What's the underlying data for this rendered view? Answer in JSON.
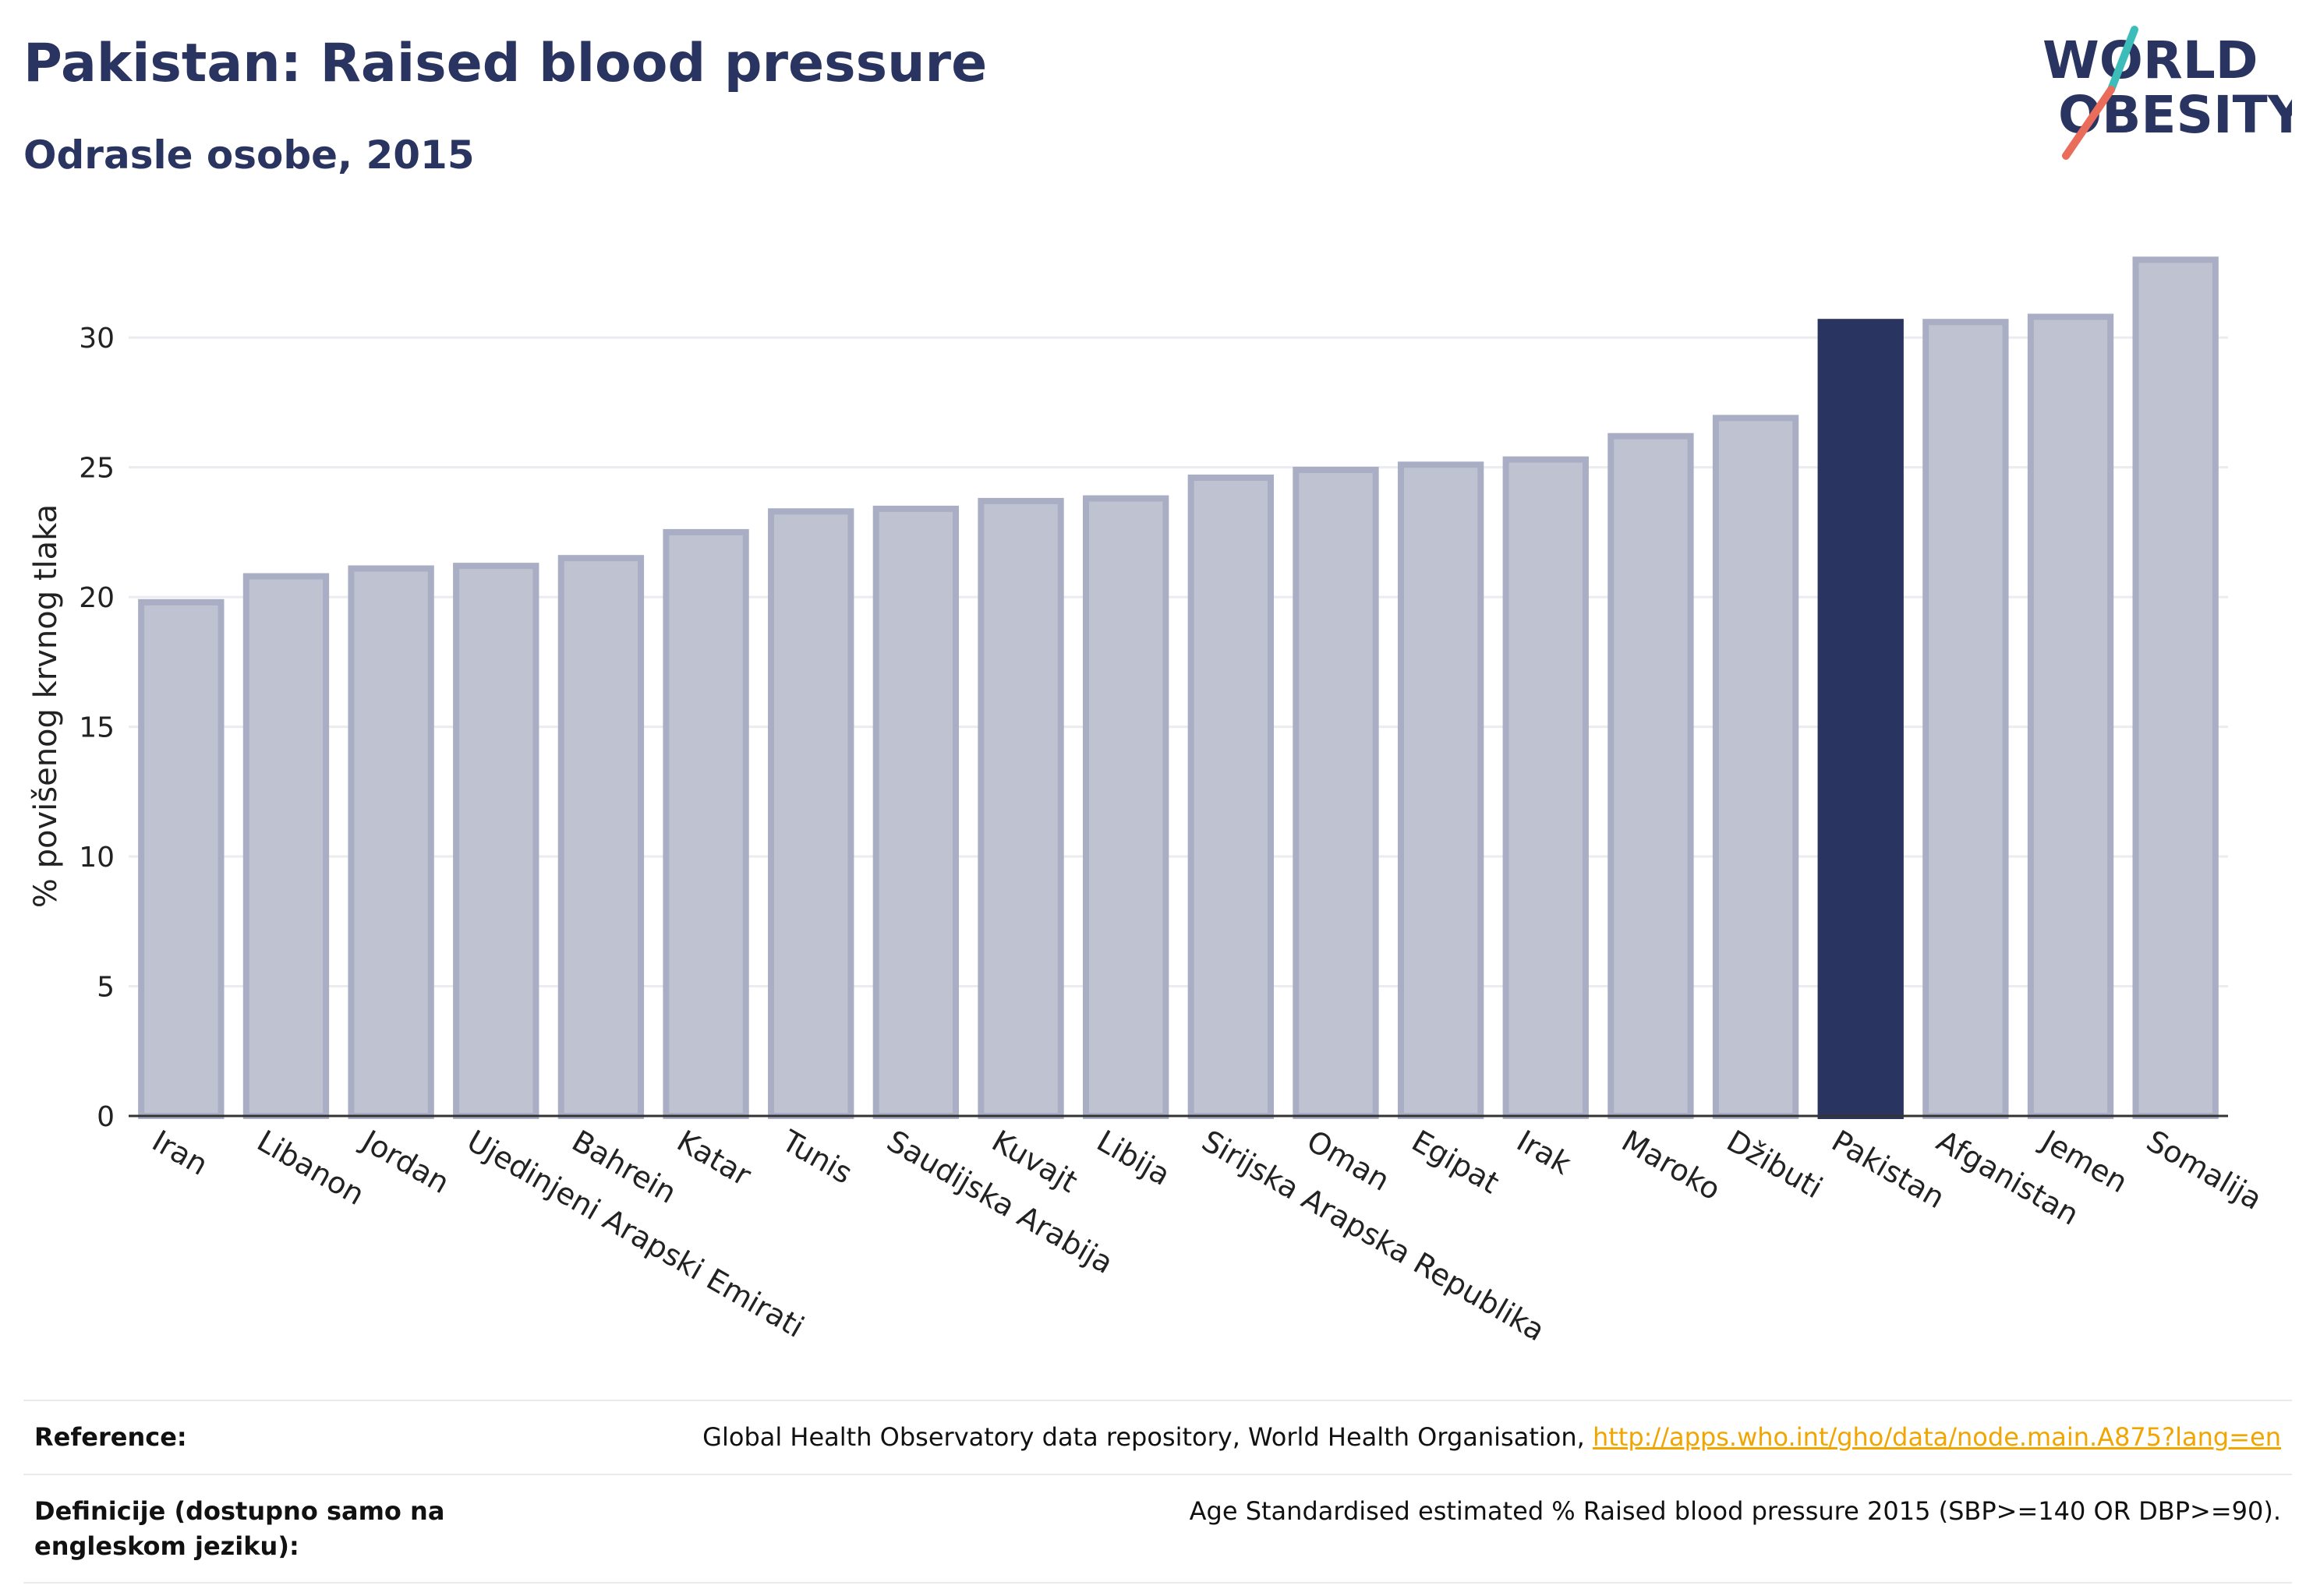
{
  "header": {
    "title": "Pakistan: Raised blood pressure",
    "subtitle": "Odrasle osobe, 2015",
    "logo_line1": "WORLD",
    "logo_line2": "OBESITY"
  },
  "colors": {
    "bar_default": "#bfc3d1",
    "bar_default_stroke": "#a9aec4",
    "bar_highlight": "#2a3460",
    "text_dark": "#2a3460",
    "link": "#f0a500",
    "logo_teal": "#3dbdb9",
    "logo_coral": "#ea6c5a"
  },
  "chart_data": {
    "type": "bar",
    "ylabel": "% povišenog krvnog tlaka",
    "ylim": [
      0,
      34
    ],
    "yticks": [
      0,
      5,
      10,
      15,
      20,
      25,
      30
    ],
    "grid": true,
    "highlight": "Pakistan",
    "categories": [
      "Iran",
      "Libanon",
      "Jordan",
      "Ujedinjeni Arapski Emirati",
      "Bahrein",
      "Katar",
      "Tunis",
      "Saudijska Arabija",
      "Kuvajt",
      "Libija",
      "Sirijska Arapska Republika",
      "Oman",
      "Egipat",
      "Irak",
      "Maroko",
      "Džibuti",
      "Pakistan",
      "Afganistan",
      "Jemen",
      "Somalija"
    ],
    "values": [
      19.8,
      20.8,
      21.1,
      21.2,
      21.5,
      22.5,
      23.3,
      23.4,
      23.7,
      23.8,
      24.6,
      24.9,
      25.1,
      25.3,
      26.2,
      26.9,
      30.6,
      30.6,
      30.8,
      33.0
    ]
  },
  "footer": {
    "reference_label": "Reference:",
    "reference_text": "Global Health Observatory data repository, World Health Organisation, ",
    "reference_link": "http://apps.who.int/gho/data/node.main.A875?lang=en",
    "definition_label": "Definicije (dostupno samo na engleskom jeziku):",
    "definition_text": "Age Standardised estimated % Raised blood pressure 2015 (SBP>=140 OR DBP>=90)."
  }
}
